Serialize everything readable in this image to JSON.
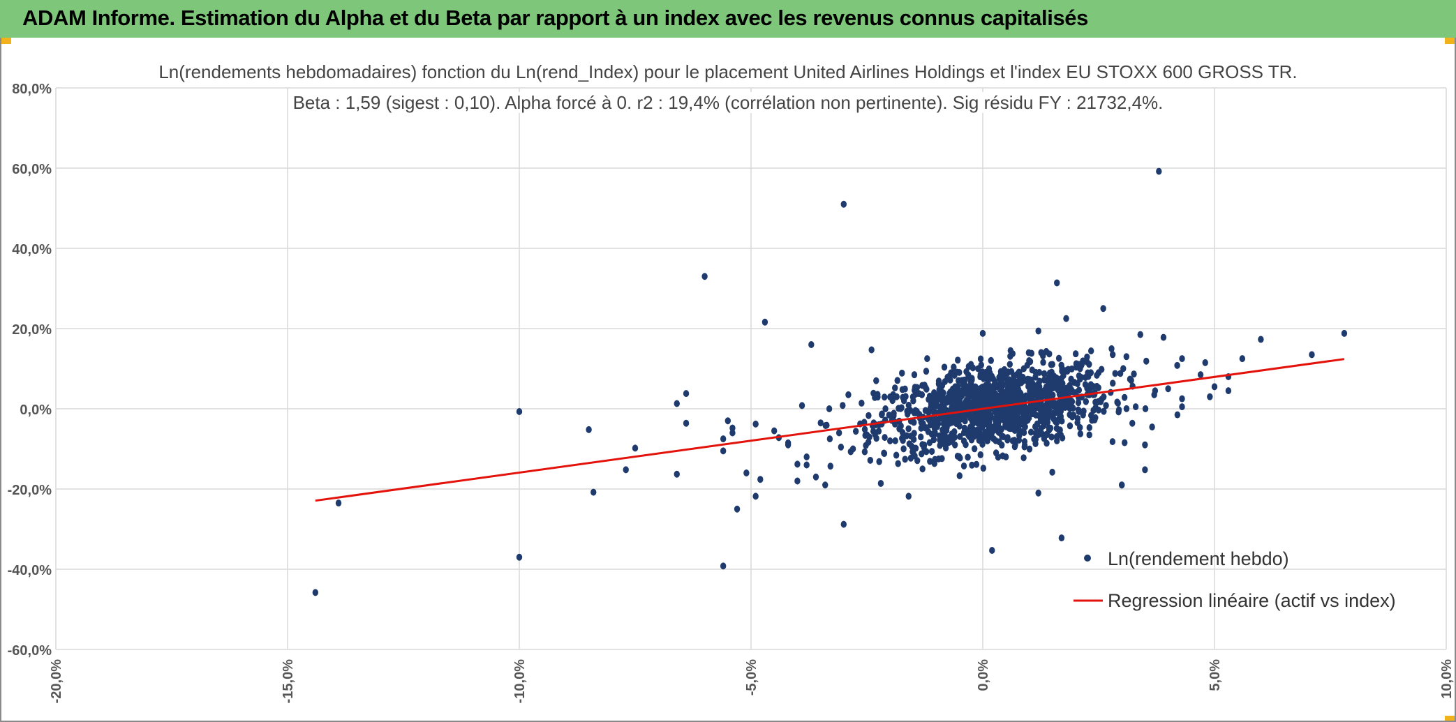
{
  "header": {
    "title": "ADAM Informe. Estimation du Alpha et du Beta par rapport à un index avec les revenus connus capitalisés",
    "background": "#7dc67a",
    "corner_color": "#f1b21c"
  },
  "chart_data": {
    "type": "scatter",
    "title": "Ln(rendements hebdomadaires) fonction du Ln(rend_Index) pour le placement United Airlines Holdings  et l'index EU STOXX 600 GROSS TR.",
    "subtitle": "Beta : 1,59 (sigest : 0,10). Alpha forcé à 0. r2 : 19,4% (corrélation non pertinente). Sig résidu FY : 21732,4%.",
    "xlim": [
      -20,
      10
    ],
    "ylim": [
      -60,
      80
    ],
    "x_ticks": [
      "-20,0%",
      "-15,0%",
      "-10,0%",
      "-5,0%",
      "0,0%",
      "5,0%",
      "10,0%"
    ],
    "y_ticks": [
      "80,0%",
      "60,0%",
      "40,0%",
      "20,0%",
      "0,0%",
      "-20,0%",
      "-40,0%",
      "-60,0%"
    ],
    "grid": true,
    "legend_position": "bottom-right",
    "colors": {
      "points": "#1f3b6e",
      "regression": "#e3120b",
      "grid": "#d9d9d9"
    },
    "series": [
      {
        "name": "Ln(rendement hebdo)",
        "kind": "scatter",
        "points": [
          [
            -14.4,
            -45.8
          ],
          [
            -13.9,
            -23.5
          ],
          [
            -10.0,
            -37.0
          ],
          [
            -10.0,
            -0.7
          ],
          [
            -8.5,
            -5.2
          ],
          [
            -8.4,
            -20.8
          ],
          [
            -7.7,
            -15.2
          ],
          [
            -7.5,
            -9.8
          ],
          [
            -6.6,
            1.3
          ],
          [
            -6.6,
            -16.3
          ],
          [
            -6.4,
            3.8
          ],
          [
            -6.4,
            -3.6
          ],
          [
            -6.0,
            33.0
          ],
          [
            -5.6,
            -39.2
          ],
          [
            -5.6,
            -7.5
          ],
          [
            -5.6,
            -10.5
          ],
          [
            -5.5,
            -3.0
          ],
          [
            -5.4,
            -4.8
          ],
          [
            -5.4,
            -6.0
          ],
          [
            -5.3,
            -25.0
          ],
          [
            -5.1,
            -16.0
          ],
          [
            -4.9,
            -3.8
          ],
          [
            -4.9,
            -21.8
          ],
          [
            -4.8,
            -17.6
          ],
          [
            -4.7,
            21.6
          ],
          [
            -4.5,
            -5.5
          ],
          [
            -4.4,
            -7.2
          ],
          [
            -4.2,
            -8.5
          ],
          [
            -4.2,
            -9.0
          ],
          [
            -4.0,
            -13.8
          ],
          [
            -4.0,
            -18.0
          ],
          [
            -3.9,
            0.8
          ],
          [
            -3.8,
            -12.0
          ],
          [
            -3.8,
            -14.0
          ],
          [
            -3.7,
            16.0
          ],
          [
            -3.6,
            -17.0
          ],
          [
            -3.4,
            -19.0
          ],
          [
            -3.3,
            -7.5
          ],
          [
            -3.1,
            -6.0
          ],
          [
            -3.0,
            51.0
          ],
          [
            -3.0,
            -28.8
          ],
          [
            -2.9,
            3.5
          ],
          [
            -2.8,
            -10.0
          ],
          [
            -2.5,
            -6.5
          ],
          [
            -2.4,
            14.7
          ],
          [
            -2.3,
            7.0
          ],
          [
            -2.2,
            -18.6
          ],
          [
            -2.1,
            0.0
          ],
          [
            -2.0,
            -8.0
          ],
          [
            -1.8,
            -5.0
          ],
          [
            -1.7,
            2.0
          ],
          [
            -1.6,
            -21.8
          ],
          [
            -1.5,
            -11.0
          ],
          [
            -1.3,
            -15.0
          ],
          [
            -1.2,
            12.5
          ],
          [
            -1.1,
            3.0
          ],
          [
            -0.9,
            4.5
          ],
          [
            -0.8,
            -7.0
          ],
          [
            -0.6,
            -9.0
          ],
          [
            -0.5,
            -16.7
          ],
          [
            -0.3,
            8.0
          ],
          [
            -0.1,
            10.0
          ],
          [
            0.0,
            18.8
          ],
          [
            0.1,
            -8.0
          ],
          [
            0.2,
            -35.3
          ],
          [
            0.3,
            5.5
          ],
          [
            0.5,
            -12.0
          ],
          [
            0.6,
            14.5
          ],
          [
            0.8,
            -3.0
          ],
          [
            0.9,
            -9.5
          ],
          [
            1.0,
            12.0
          ],
          [
            1.2,
            19.4
          ],
          [
            1.2,
            -21.0
          ],
          [
            1.4,
            7.0
          ],
          [
            1.5,
            -15.8
          ],
          [
            1.6,
            31.4
          ],
          [
            1.6,
            -8.0
          ],
          [
            1.7,
            -32.2
          ],
          [
            1.8,
            22.5
          ],
          [
            2.0,
            4.0
          ],
          [
            2.1,
            10.0
          ],
          [
            2.3,
            -6.5
          ],
          [
            2.5,
            9.0
          ],
          [
            2.6,
            25.0
          ],
          [
            2.8,
            -8.2
          ],
          [
            3.0,
            -19.0
          ],
          [
            3.0,
            -19.0
          ],
          [
            3.1,
            13.0
          ],
          [
            3.3,
            0.5
          ],
          [
            3.4,
            18.5
          ],
          [
            3.5,
            -15.2
          ],
          [
            3.5,
            -9.0
          ],
          [
            3.7,
            3.5
          ],
          [
            3.8,
            59.2
          ],
          [
            3.9,
            17.8
          ],
          [
            4.0,
            5.0
          ],
          [
            4.2,
            -1.5
          ],
          [
            4.3,
            0.5
          ],
          [
            4.3,
            2.5
          ],
          [
            4.3,
            12.5
          ],
          [
            4.7,
            8.5
          ],
          [
            4.8,
            11.5
          ],
          [
            4.9,
            3.0
          ],
          [
            5.0,
            5.5
          ],
          [
            5.3,
            4.5
          ],
          [
            5.3,
            8.0
          ],
          [
            5.6,
            12.5
          ],
          [
            6.0,
            17.3
          ],
          [
            7.1,
            13.5
          ],
          [
            7.8,
            18.8
          ]
        ]
      },
      {
        "name": "Regression linéaire (actif vs index)",
        "kind": "line",
        "x": [
          -14.4,
          7.8
        ],
        "y": [
          -22.9,
          12.4
        ]
      }
    ]
  }
}
